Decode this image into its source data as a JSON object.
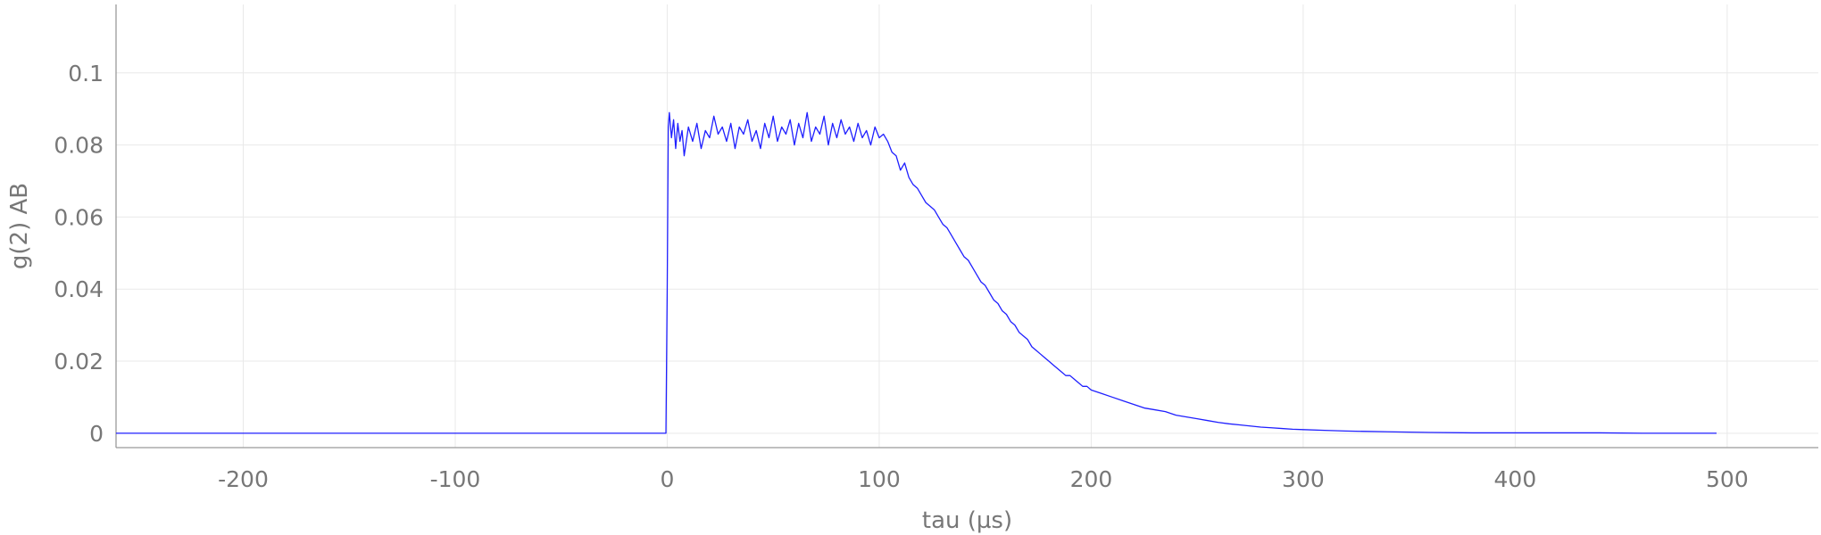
{
  "chart_data": {
    "type": "line",
    "title": "",
    "xlabel": "tau (µs)",
    "ylabel": "g(2) AB",
    "xlim": [
      -260,
      543
    ],
    "ylim": [
      -0.004,
      0.119
    ],
    "x_ticks": [
      -200,
      -100,
      0,
      100,
      200,
      300,
      400,
      500
    ],
    "x_tick_labels": [
      "-200",
      "-100",
      "0",
      "100",
      "200",
      "300",
      "400",
      "500"
    ],
    "y_ticks": [
      0,
      0.02,
      0.04,
      0.06,
      0.08,
      0.1
    ],
    "y_tick_labels": [
      "0",
      "0.02",
      "0.04",
      "0.06",
      "0.08",
      "0.1"
    ],
    "grid": true,
    "legend": "none",
    "colors": {
      "series": "#1f1fff",
      "grid": "#e9e9e9",
      "axis": "#9a9a9a",
      "text": "#777777"
    },
    "series": [
      {
        "x": [
          -260,
          -200,
          -100,
          -0.6,
          0,
          0.5,
          1,
          2,
          3,
          4,
          5,
          6,
          7,
          8,
          10,
          12,
          14,
          16,
          18,
          20,
          22,
          24,
          26,
          28,
          30,
          32,
          34,
          36,
          38,
          40,
          42,
          44,
          46,
          48,
          50,
          52,
          54,
          56,
          58,
          60,
          62,
          64,
          66,
          68,
          70,
          72,
          74,
          76,
          78,
          80,
          82,
          84,
          86,
          88,
          90,
          92,
          94,
          96,
          98,
          100,
          102,
          104,
          106,
          108,
          110,
          112,
          114,
          116,
          118,
          120,
          122,
          124,
          126,
          128,
          130,
          132,
          134,
          136,
          138,
          140,
          142,
          144,
          146,
          148,
          150,
          152,
          154,
          156,
          158,
          160,
          162,
          164,
          166,
          168,
          170,
          172,
          174,
          176,
          178,
          180,
          182,
          184,
          186,
          188,
          190,
          192,
          194,
          196,
          198,
          200,
          205,
          210,
          215,
          220,
          225,
          230,
          235,
          240,
          245,
          250,
          255,
          260,
          265,
          270,
          275,
          280,
          285,
          290,
          295,
          300,
          310,
          320,
          330,
          340,
          350,
          360,
          380,
          400,
          420,
          440,
          460,
          480,
          495
        ],
        "y": [
          0,
          0,
          0,
          0,
          0.04,
          0.085,
          0.089,
          0.082,
          0.087,
          0.079,
          0.086,
          0.081,
          0.084,
          0.077,
          0.085,
          0.081,
          0.086,
          0.079,
          0.084,
          0.082,
          0.088,
          0.083,
          0.085,
          0.081,
          0.086,
          0.079,
          0.085,
          0.083,
          0.087,
          0.081,
          0.084,
          0.079,
          0.086,
          0.082,
          0.088,
          0.081,
          0.085,
          0.083,
          0.087,
          0.08,
          0.086,
          0.082,
          0.089,
          0.081,
          0.085,
          0.083,
          0.088,
          0.08,
          0.086,
          0.082,
          0.087,
          0.083,
          0.085,
          0.081,
          0.086,
          0.082,
          0.084,
          0.08,
          0.085,
          0.082,
          0.083,
          0.081,
          0.078,
          0.077,
          0.073,
          0.075,
          0.071,
          0.069,
          0.068,
          0.066,
          0.064,
          0.063,
          0.062,
          0.06,
          0.058,
          0.057,
          0.055,
          0.053,
          0.051,
          0.049,
          0.048,
          0.046,
          0.044,
          0.042,
          0.041,
          0.039,
          0.037,
          0.036,
          0.034,
          0.033,
          0.031,
          0.03,
          0.028,
          0.027,
          0.026,
          0.024,
          0.023,
          0.022,
          0.021,
          0.02,
          0.019,
          0.018,
          0.017,
          0.016,
          0.016,
          0.015,
          0.014,
          0.013,
          0.013,
          0.012,
          0.011,
          0.01,
          0.009,
          0.008,
          0.007,
          0.0065,
          0.006,
          0.005,
          0.0045,
          0.004,
          0.0035,
          0.003,
          0.0026,
          0.0023,
          0.002,
          0.0017,
          0.0015,
          0.0013,
          0.0011,
          0.001,
          0.0008,
          0.0006,
          0.0005,
          0.0004,
          0.0003,
          0.0002,
          0.0001,
          0.0001,
          0.0001,
          0.0001,
          0,
          0,
          0
        ]
      }
    ]
  }
}
